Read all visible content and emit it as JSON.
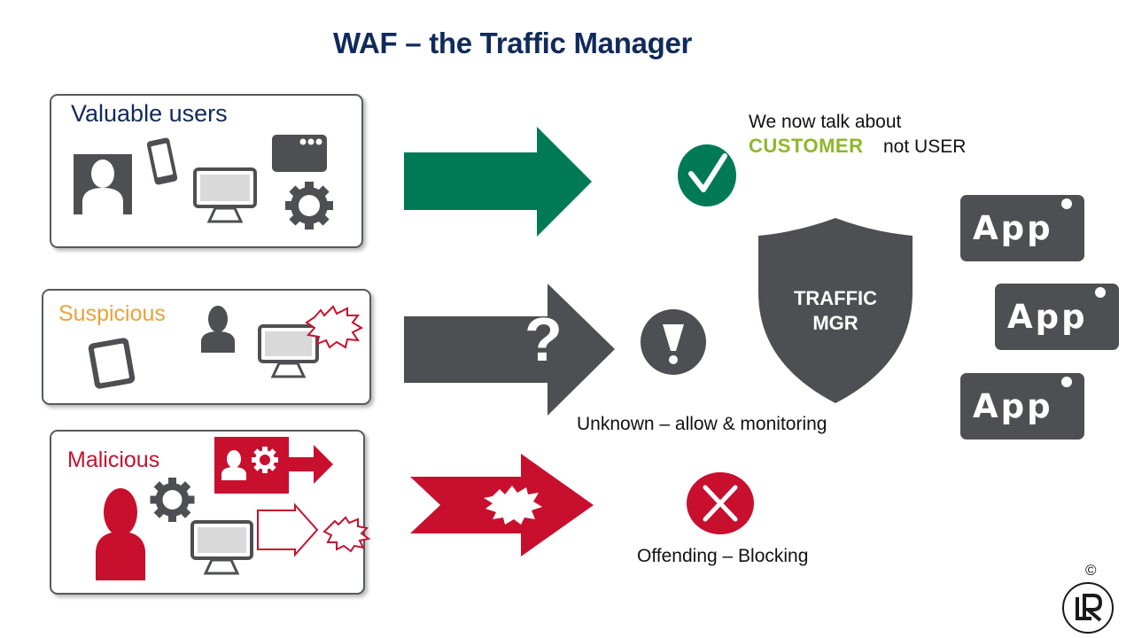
{
  "title": "WAF – the Traffic Manager",
  "panels": {
    "valuable": "Valuable users",
    "suspicious": "Suspicious",
    "malicious": "Malicious"
  },
  "notes": {
    "talk_prefix": "We now talk about",
    "customer": "CUSTOMER",
    "not_user": "not USER",
    "unknown": "Unknown – allow & monitoring",
    "offending": "Offending – Blocking"
  },
  "shield": {
    "line1": "TRAFFIC",
    "line2": "MGR"
  },
  "arrow_question": "?",
  "apps": [
    "App",
    "App",
    "App"
  ],
  "copyright": "©",
  "logo_text": "LR",
  "colors": {
    "navy": "#102a5c",
    "green": "#007a55",
    "gray": "#4d4f52",
    "red": "#c8102e",
    "orange": "#e8a33a",
    "lime": "#8db82a"
  },
  "icons": [
    "user-icon",
    "phone-icon",
    "monitor-icon",
    "browser-icon",
    "gear-icon",
    "tablet-icon",
    "burst-icon",
    "check-icon",
    "exclamation-icon",
    "cross-icon",
    "shield-icon"
  ]
}
